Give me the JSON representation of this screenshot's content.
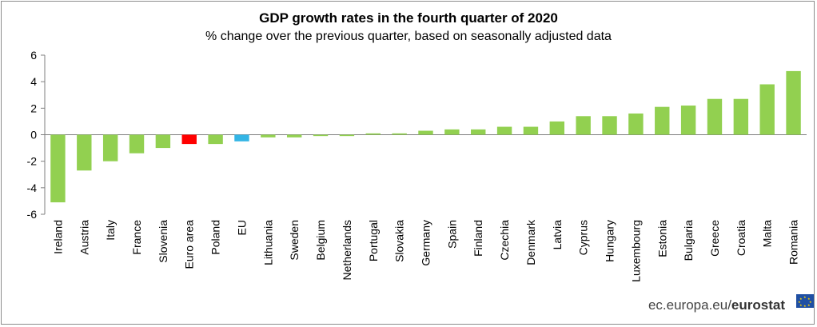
{
  "chart_data": {
    "type": "bar",
    "title": "GDP growth rates in the fourth quarter of 2020",
    "subtitle": "% change over the previous quarter, based on seasonally adjusted data",
    "xlabel": "",
    "ylabel": "",
    "ylim": [
      -6,
      6
    ],
    "yticks": [
      6,
      4,
      2,
      0,
      -2,
      -4,
      -6
    ],
    "grid": false,
    "legend": "none",
    "categories": [
      "Ireland",
      "Austria",
      "Italy",
      "France",
      "Slovenia",
      "Euro area",
      "Poland",
      "EU",
      "Lithuania",
      "Sweden",
      "Belgium",
      "Netherlands",
      "Portugal",
      "Slovakia",
      "Germany",
      "Spain",
      "Finland",
      "Czechia",
      "Denmark",
      "Latvia",
      "Cyprus",
      "Hungary",
      "Luxembourg",
      "Estonia",
      "Bulgaria",
      "Greece",
      "Croatia",
      "Malta",
      "Romania"
    ],
    "values": [
      -5.1,
      -2.7,
      -2.0,
      -1.4,
      -1.0,
      -0.7,
      -0.7,
      -0.5,
      -0.2,
      -0.2,
      -0.1,
      -0.1,
      0.1,
      0.1,
      0.3,
      0.4,
      0.4,
      0.6,
      0.6,
      1.0,
      1.4,
      1.4,
      1.6,
      2.1,
      2.2,
      2.7,
      2.7,
      3.8,
      4.8
    ],
    "highlight": {
      "Euro area": "#ff0000",
      "EU": "#33b5e5"
    },
    "bar_color": "#92d050"
  },
  "colors": {
    "axis": "#7f7f7f",
    "footer": "#444444"
  },
  "footer": {
    "domain": "ec.europa.eu/",
    "brand": "eurostat"
  },
  "logo": {
    "icon": "eu-flag-icon"
  }
}
